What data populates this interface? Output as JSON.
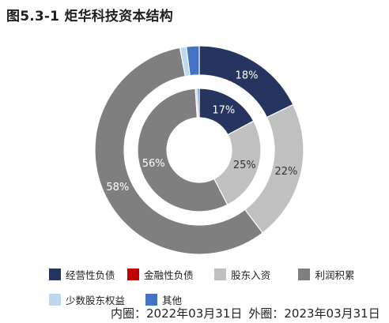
{
  "title": "图5.3-1 炬华科技资本结构",
  "note": {
    "inner": "内圈：2022年03月31日",
    "outer": "外圈：2023年03月31日"
  },
  "chart_data": {
    "type": "pie",
    "subtype": "double-donut",
    "categories": [
      "经营性负债",
      "金融性负债",
      "股东入资",
      "利润积累",
      "少数股东权益",
      "其他"
    ],
    "colors": [
      "#25355f",
      "#c00000",
      "#c0c0c0",
      "#7f7f7f",
      "#bdd7ee",
      "#4472c4"
    ],
    "series": [
      {
        "ring": "inner",
        "values": [
          17,
          0,
          25,
          56,
          0.5,
          0.5
        ],
        "labels": [
          "17%",
          "",
          "25%",
          "56%",
          "",
          ""
        ]
      },
      {
        "ring": "outer",
        "values": [
          18,
          0,
          22,
          58,
          1,
          2
        ],
        "labels": [
          "18%",
          "",
          "22%",
          "58%",
          "",
          ""
        ]
      }
    ],
    "legend_position": "bottom"
  }
}
